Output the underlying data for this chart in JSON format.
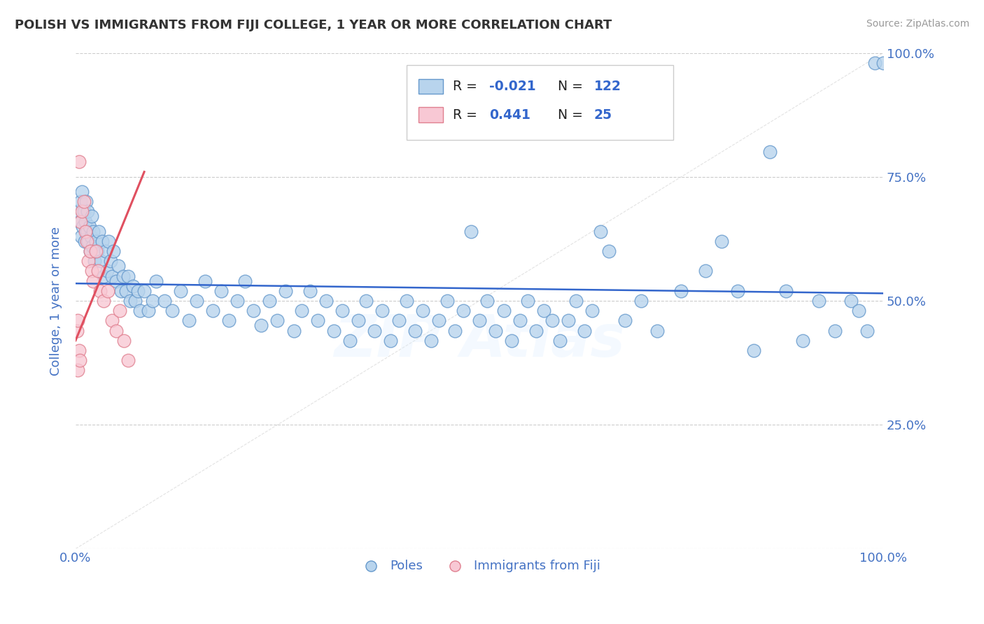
{
  "title": "POLISH VS IMMIGRANTS FROM FIJI COLLEGE, 1 YEAR OR MORE CORRELATION CHART",
  "source": "Source: ZipAtlas.com",
  "ylabel": "College, 1 year or more",
  "xlim": [
    0.0,
    1.0
  ],
  "ylim": [
    0.0,
    1.0
  ],
  "xtick_positions": [
    0.0,
    1.0
  ],
  "xtick_labels": [
    "0.0%",
    "100.0%"
  ],
  "ytick_vals": [
    0.0,
    0.25,
    0.5,
    0.75,
    1.0
  ],
  "ytick_labels": [
    "",
    "25.0%",
    "50.0%",
    "75.0%",
    "100.0%"
  ],
  "grid_color": "#cccccc",
  "background_color": "#ffffff",
  "watermark": "ZIPAtlas",
  "blue_scatter": [
    [
      0.003,
      0.68
    ],
    [
      0.005,
      0.66
    ],
    [
      0.006,
      0.7
    ],
    [
      0.007,
      0.63
    ],
    [
      0.008,
      0.72
    ],
    [
      0.009,
      0.65
    ],
    [
      0.01,
      0.68
    ],
    [
      0.011,
      0.62
    ],
    [
      0.012,
      0.66
    ],
    [
      0.013,
      0.7
    ],
    [
      0.014,
      0.64
    ],
    [
      0.015,
      0.68
    ],
    [
      0.016,
      0.62
    ],
    [
      0.017,
      0.65
    ],
    [
      0.018,
      0.6
    ],
    [
      0.019,
      0.63
    ],
    [
      0.02,
      0.67
    ],
    [
      0.021,
      0.61
    ],
    [
      0.022,
      0.64
    ],
    [
      0.023,
      0.58
    ],
    [
      0.025,
      0.62
    ],
    [
      0.027,
      0.6
    ],
    [
      0.029,
      0.64
    ],
    [
      0.031,
      0.58
    ],
    [
      0.033,
      0.62
    ],
    [
      0.035,
      0.55
    ],
    [
      0.037,
      0.6
    ],
    [
      0.039,
      0.56
    ],
    [
      0.041,
      0.62
    ],
    [
      0.043,
      0.58
    ],
    [
      0.045,
      0.55
    ],
    [
      0.047,
      0.6
    ],
    [
      0.05,
      0.54
    ],
    [
      0.053,
      0.57
    ],
    [
      0.056,
      0.52
    ],
    [
      0.059,
      0.55
    ],
    [
      0.062,
      0.52
    ],
    [
      0.065,
      0.55
    ],
    [
      0.068,
      0.5
    ],
    [
      0.071,
      0.53
    ],
    [
      0.074,
      0.5
    ],
    [
      0.077,
      0.52
    ],
    [
      0.08,
      0.48
    ],
    [
      0.085,
      0.52
    ],
    [
      0.09,
      0.48
    ],
    [
      0.095,
      0.5
    ],
    [
      0.1,
      0.54
    ],
    [
      0.11,
      0.5
    ],
    [
      0.12,
      0.48
    ],
    [
      0.13,
      0.52
    ],
    [
      0.14,
      0.46
    ],
    [
      0.15,
      0.5
    ],
    [
      0.16,
      0.54
    ],
    [
      0.17,
      0.48
    ],
    [
      0.18,
      0.52
    ],
    [
      0.19,
      0.46
    ],
    [
      0.2,
      0.5
    ],
    [
      0.21,
      0.54
    ],
    [
      0.22,
      0.48
    ],
    [
      0.23,
      0.45
    ],
    [
      0.24,
      0.5
    ],
    [
      0.25,
      0.46
    ],
    [
      0.26,
      0.52
    ],
    [
      0.27,
      0.44
    ],
    [
      0.28,
      0.48
    ],
    [
      0.29,
      0.52
    ],
    [
      0.3,
      0.46
    ],
    [
      0.31,
      0.5
    ],
    [
      0.32,
      0.44
    ],
    [
      0.33,
      0.48
    ],
    [
      0.34,
      0.42
    ],
    [
      0.35,
      0.46
    ],
    [
      0.36,
      0.5
    ],
    [
      0.37,
      0.44
    ],
    [
      0.38,
      0.48
    ],
    [
      0.39,
      0.42
    ],
    [
      0.4,
      0.46
    ],
    [
      0.41,
      0.5
    ],
    [
      0.42,
      0.44
    ],
    [
      0.43,
      0.48
    ],
    [
      0.44,
      0.42
    ],
    [
      0.45,
      0.46
    ],
    [
      0.46,
      0.5
    ],
    [
      0.47,
      0.44
    ],
    [
      0.48,
      0.48
    ],
    [
      0.49,
      0.64
    ],
    [
      0.5,
      0.46
    ],
    [
      0.51,
      0.5
    ],
    [
      0.52,
      0.44
    ],
    [
      0.53,
      0.48
    ],
    [
      0.54,
      0.42
    ],
    [
      0.55,
      0.46
    ],
    [
      0.56,
      0.5
    ],
    [
      0.57,
      0.44
    ],
    [
      0.58,
      0.48
    ],
    [
      0.59,
      0.46
    ],
    [
      0.6,
      0.42
    ],
    [
      0.61,
      0.46
    ],
    [
      0.62,
      0.5
    ],
    [
      0.63,
      0.44
    ],
    [
      0.64,
      0.48
    ],
    [
      0.65,
      0.64
    ],
    [
      0.66,
      0.6
    ],
    [
      0.68,
      0.46
    ],
    [
      0.7,
      0.5
    ],
    [
      0.72,
      0.44
    ],
    [
      0.75,
      0.52
    ],
    [
      0.78,
      0.56
    ],
    [
      0.8,
      0.62
    ],
    [
      0.82,
      0.52
    ],
    [
      0.84,
      0.4
    ],
    [
      0.86,
      0.8
    ],
    [
      0.88,
      0.52
    ],
    [
      0.9,
      0.42
    ],
    [
      0.92,
      0.5
    ],
    [
      0.94,
      0.44
    ],
    [
      0.96,
      0.5
    ],
    [
      0.97,
      0.48
    ],
    [
      0.98,
      0.44
    ],
    [
      0.99,
      0.98
    ],
    [
      1.0,
      0.98
    ]
  ],
  "pink_scatter": [
    [
      0.004,
      0.78
    ],
    [
      0.006,
      0.66
    ],
    [
      0.008,
      0.68
    ],
    [
      0.01,
      0.7
    ],
    [
      0.012,
      0.64
    ],
    [
      0.014,
      0.62
    ],
    [
      0.016,
      0.58
    ],
    [
      0.018,
      0.6
    ],
    [
      0.02,
      0.56
    ],
    [
      0.022,
      0.54
    ],
    [
      0.025,
      0.6
    ],
    [
      0.028,
      0.56
    ],
    [
      0.03,
      0.52
    ],
    [
      0.035,
      0.5
    ],
    [
      0.04,
      0.52
    ],
    [
      0.045,
      0.46
    ],
    [
      0.05,
      0.44
    ],
    [
      0.055,
      0.48
    ],
    [
      0.002,
      0.44
    ],
    [
      0.003,
      0.46
    ],
    [
      0.06,
      0.42
    ],
    [
      0.065,
      0.38
    ],
    [
      0.003,
      0.36
    ],
    [
      0.004,
      0.4
    ],
    [
      0.005,
      0.38
    ]
  ],
  "blue_line_color": "#3366cc",
  "pink_line_color": "#e05060",
  "diagonal_line_color": "#d0d0d0",
  "scatter_blue_color": "#b8d4ed",
  "scatter_pink_color": "#f8c8d4",
  "scatter_blue_edge": "#6699cc",
  "scatter_pink_edge": "#e08090",
  "title_color": "#333333",
  "axis_label_color": "#4472c4",
  "source_color": "#999999",
  "blue_trend_start_y": 0.535,
  "blue_trend_end_y": 0.515,
  "pink_trend_x0": 0.0,
  "pink_trend_y0": 0.42,
  "pink_trend_x1": 0.085,
  "pink_trend_y1": 0.76
}
